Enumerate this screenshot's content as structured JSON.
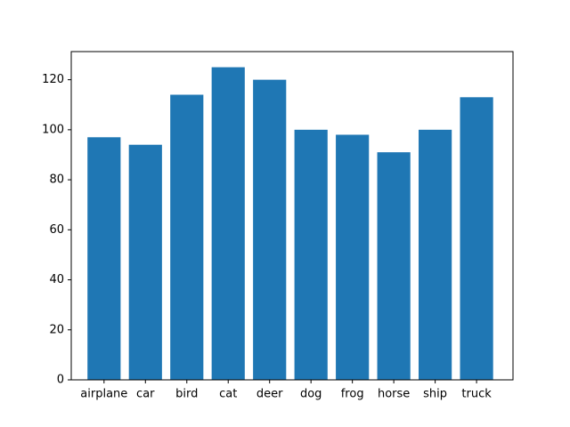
{
  "chart_data": {
    "type": "bar",
    "categories": [
      "airplane",
      "car",
      "bird",
      "cat",
      "deer",
      "dog",
      "frog",
      "horse",
      "ship",
      "truck"
    ],
    "values": [
      97,
      94,
      114,
      125,
      120,
      100,
      98,
      91,
      100,
      113
    ],
    "color": "#1f77b4",
    "ylim": [
      0,
      131.25
    ],
    "yticks": [
      0,
      20,
      40,
      60,
      80,
      100,
      120
    ],
    "grid": false
  }
}
